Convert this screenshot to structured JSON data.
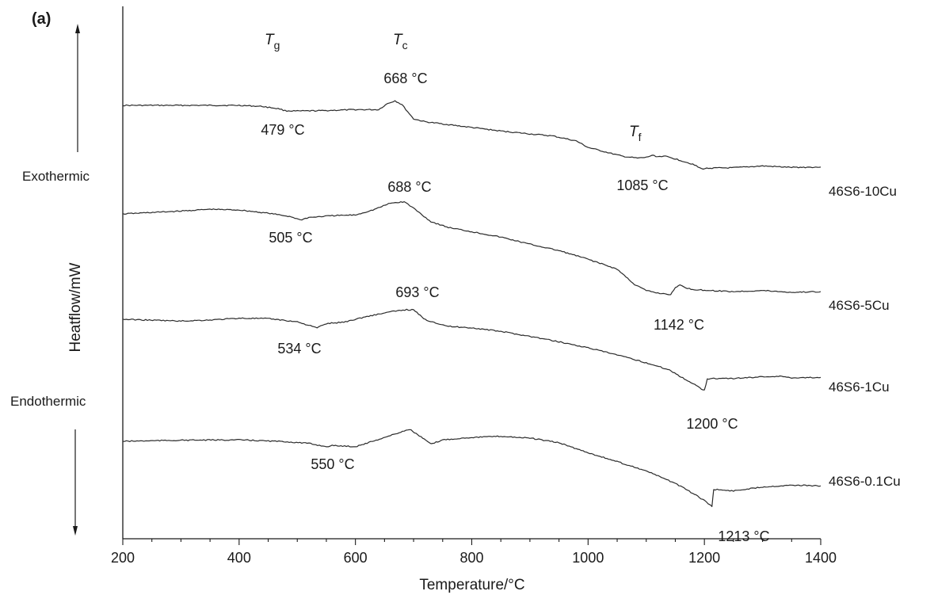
{
  "chart_data": {
    "type": "line",
    "panel_label": "(a)",
    "xlabel": "Temperature/°C",
    "ylabel": "Heatflow/mW",
    "xlim": [
      200,
      1400
    ],
    "x_ticks": [
      "200",
      "400",
      "600",
      "800",
      "1000",
      "1200",
      "1400"
    ],
    "grid": false,
    "exo_label": "Exothermic",
    "endo_label": "Endothermic",
    "transitions": [
      {
        "symbol": "T",
        "sub": "g"
      },
      {
        "symbol": "T",
        "sub": "c"
      },
      {
        "symbol": "T",
        "sub": "f"
      }
    ],
    "series": [
      {
        "name": "46S6-10Cu",
        "x": [
          200,
          300,
          400,
          440,
          470,
          479,
          500,
          540,
          600,
          640,
          655,
          668,
          680,
          690,
          700,
          720,
          760,
          800,
          850,
          900,
          940,
          980,
          1000,
          1040,
          1060,
          1085,
          1100,
          1110,
          1120,
          1130,
          1150,
          1180,
          1195,
          1210,
          1250,
          1300,
          1350,
          1400
        ],
        "y": [
          0,
          0,
          0,
          -0.3,
          -1,
          -1.5,
          -1.6,
          -1.5,
          -1.2,
          -1.2,
          0.5,
          1.3,
          0.2,
          -1.8,
          -3.8,
          -4.6,
          -5.4,
          -6.2,
          -7.2,
          -8,
          -8.6,
          -10,
          -11.8,
          -13.5,
          -14.3,
          -14.8,
          -14.6,
          -14,
          -14.4,
          -14.2,
          -15,
          -16.5,
          -17.8,
          -17.6,
          -17.5,
          -17,
          -17.4,
          -17.3
        ],
        "annotations": [
          "479 °C",
          "668 °C",
          "1085 °C"
        ]
      },
      {
        "name": "46S6-5Cu",
        "x": [
          200,
          300,
          350,
          400,
          450,
          490,
          505,
          520,
          560,
          600,
          630,
          660,
          684,
          700,
          730,
          760,
          800,
          850,
          900,
          950,
          1000,
          1050,
          1080,
          1100,
          1120,
          1142,
          1150,
          1158,
          1165,
          1180,
          1200,
          1250,
          1300,
          1350,
          1400
        ],
        "y": [
          0,
          0.8,
          1.3,
          1.1,
          0.2,
          -0.8,
          -1.7,
          -1,
          -0.5,
          -0.3,
          1.1,
          3,
          3.4,
          1.6,
          -2.2,
          -3.8,
          -5,
          -6.5,
          -8.5,
          -10.3,
          -12.7,
          -15.5,
          -19.8,
          -21.5,
          -22.2,
          -22.6,
          -20.8,
          -19.8,
          -20.6,
          -21.2,
          -21.4,
          -21.8,
          -21.5,
          -22,
          -21.8
        ],
        "annotations": [
          "505 °C",
          "688 °C",
          "1142 °C"
        ]
      },
      {
        "name": "46S6-1Cu",
        "x": [
          200,
          300,
          350,
          400,
          450,
          500,
          520,
          534,
          550,
          580,
          620,
          660,
          688,
          700,
          720,
          760,
          800,
          850,
          900,
          950,
          1000,
          1050,
          1100,
          1140,
          1160,
          1180,
          1195,
          1200,
          1205,
          1210,
          1250,
          1300,
          1330,
          1350,
          1400
        ],
        "y": [
          0,
          -0.5,
          -0.2,
          0.3,
          0.2,
          -0.7,
          -1.7,
          -2.4,
          -1.2,
          -0.8,
          0.8,
          2.1,
          2.7,
          2.6,
          -0.1,
          -2,
          -2.4,
          -3.4,
          -4.8,
          -6.3,
          -8,
          -10,
          -12.2,
          -14.2,
          -16.2,
          -18,
          -19.5,
          -19.8,
          -16.8,
          -16.6,
          -16.6,
          -16.1,
          -16,
          -16.4,
          -16.3
        ],
        "annotations": [
          "534 °C",
          "693 °C",
          "1200 °C"
        ]
      },
      {
        "name": "46S6-0.1Cu",
        "x": [
          200,
          300,
          400,
          480,
          520,
          550,
          560,
          575,
          600,
          620,
          660,
          693,
          710,
          730,
          750,
          800,
          850,
          900,
          950,
          1000,
          1050,
          1100,
          1150,
          1180,
          1200,
          1210,
          1213,
          1216,
          1225,
          1250,
          1300,
          1350,
          1400
        ],
        "y": [
          0,
          0.3,
          0.4,
          -0.1,
          -0.6,
          -1.5,
          -1.2,
          -1.3,
          -1.5,
          -0.5,
          1.6,
          3.4,
          1.5,
          -0.8,
          0.4,
          1.1,
          1.4,
          0.9,
          -0.4,
          -3.2,
          -5.7,
          -8.3,
          -11.8,
          -14.6,
          -16.6,
          -17.9,
          -18.2,
          -13.5,
          -13.6,
          -13.9,
          -12.8,
          -12.3,
          -12.5
        ],
        "annotations": [
          "550 °C",
          "",
          "1213 °C"
        ]
      }
    ]
  }
}
